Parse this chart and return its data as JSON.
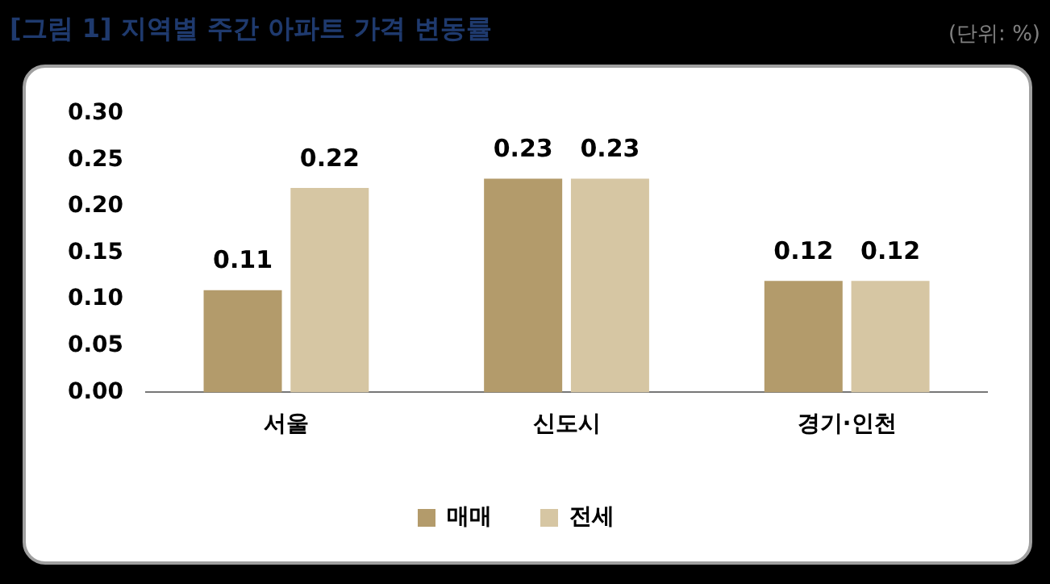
{
  "chart_data": {
    "type": "bar",
    "title": "[그림 1] 지역별 주간 아파트 가격 변동률",
    "annotations": [
      "(단위: %)"
    ],
    "categories": [
      "서울",
      "신도시",
      "경기·인천"
    ],
    "series": [
      {
        "name": "매매",
        "color": "#b39b6b",
        "values": [
          0.11,
          0.23,
          0.12
        ]
      },
      {
        "name": "전세",
        "color": "#d6c6a3",
        "values": [
          0.22,
          0.23,
          0.12
        ]
      }
    ],
    "ylim": [
      0,
      0.3
    ],
    "yticks": [
      {
        "value": 0,
        "label": "0.00"
      },
      {
        "value": 0.05,
        "label": "0.05"
      },
      {
        "value": 0.1,
        "label": "0.10"
      },
      {
        "value": 0.15,
        "label": "0.15"
      },
      {
        "value": 0.2,
        "label": "0.20"
      },
      {
        "value": 0.25,
        "label": "0.25"
      },
      {
        "value": 0.3,
        "label": "0.30"
      }
    ],
    "grid": false,
    "legend": "bottom",
    "data_labels": true
  }
}
